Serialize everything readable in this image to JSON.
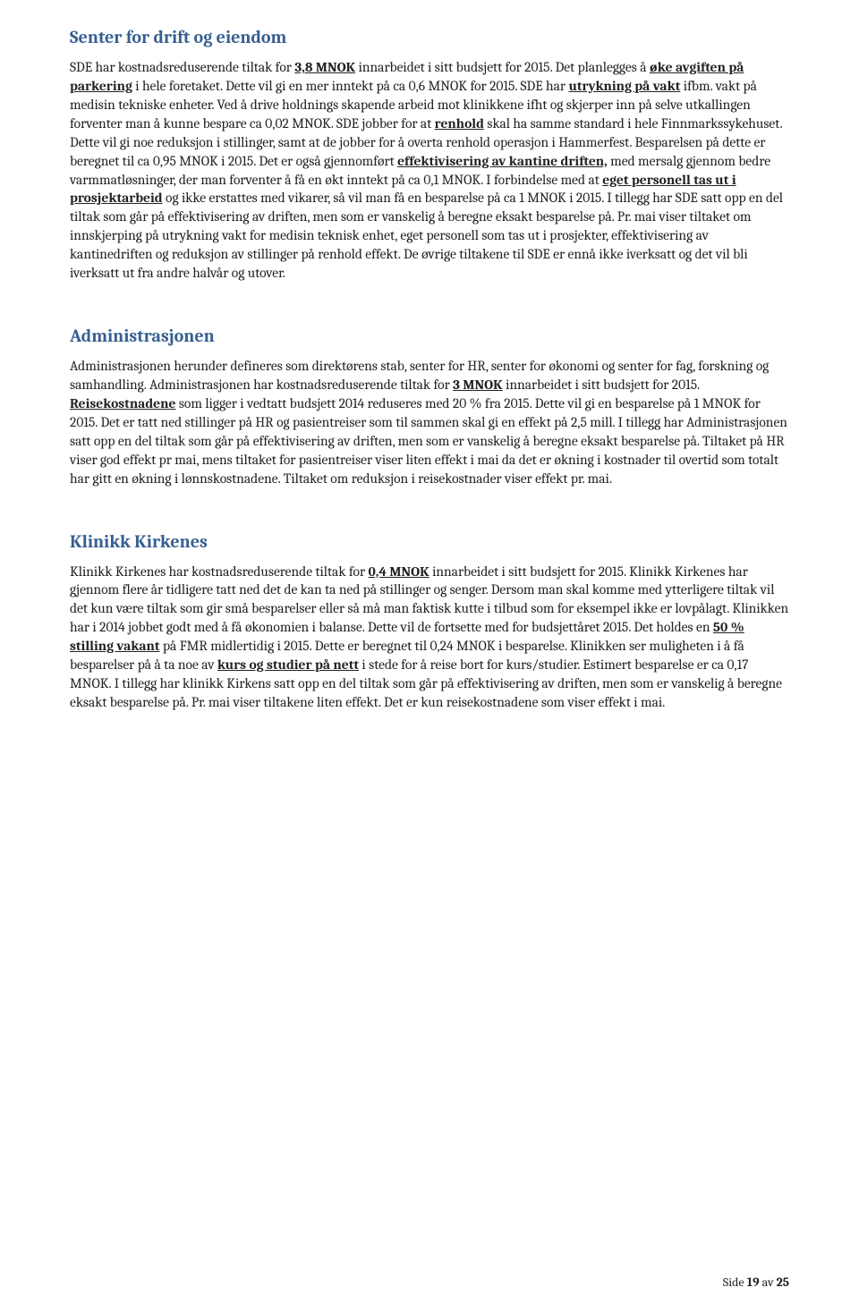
{
  "section1": {
    "heading": "Senter for drift og eiendom",
    "p_pre1": "SDE har kostnadsreduserende tiltak for ",
    "u1": "3,8 MNOK",
    "p_post1": " innarbeidet i sitt budsjett for 2015. Det planlegges å ",
    "u2": "øke avgiften på parkering",
    "p_post2": " i hele foretaket. Dette vil gi en mer inntekt på ca 0,6 MNOK for 2015. SDE har ",
    "u3": "utrykning på vakt",
    "p_post3": " ifbm. vakt på medisin tekniske enheter. Ved å drive holdnings skapende arbeid mot klinikkene ifht og skjerper inn på selve utkallingen forventer man å kunne bespare ca 0,02 MNOK. SDE jobber for at ",
    "u4": "renhold",
    "p_post4": " skal ha samme standard i hele Finnmarkssykehuset. Dette vil gi noe reduksjon i stillinger, samt at de jobber for å overta renhold operasjon i Hammerfest. Besparelsen på dette er beregnet til ca 0,95 MNOK i 2015. Det er også gjennomført ",
    "u5": "effektivisering av kantine driften,",
    "p_post5": " med mersalg gjennom bedre varmmatløsninger, der man forventer å få en økt inntekt på ca 0,1 MNOK. I forbindelse med at ",
    "u6": "eget personell tas ut i prosjektarbeid",
    "p_post6": " og ikke erstattes med vikarer, så vil man få en besparelse på ca 1 MNOK i 2015. I tillegg har SDE satt opp en del tiltak som går på effektivisering av driften, men som er vanskelig å beregne eksakt besparelse på. Pr. mai viser tiltaket om innskjerping på utrykning vakt for medisin teknisk enhet, eget personell som tas ut i prosjekter, effektivisering av kantinedriften og reduksjon av stillinger på renhold effekt. De øvrige tiltakene til SDE er ennå ikke iverksatt og det vil bli iverksatt ut fra andre halvår og utover."
  },
  "section2": {
    "heading": "Administrasjonen",
    "p_pre1": "Administrasjonen herunder defineres som direktørens stab, senter for HR, senter for økonomi og senter for fag, forskning og samhandling. Administrasjonen har kostnadsreduserende tiltak for ",
    "u1": "3 MNOK",
    "p_post1": " innarbeidet i sitt budsjett for 2015. ",
    "u2": "Reisekostnadene",
    "p_post2": " som ligger i vedtatt budsjett 2014 reduseres med 20 % fra 2015. Dette vil gi en besparelse på 1 MNOK for 2015. Det er tatt ned stillinger på HR og pasientreiser som til sammen skal gi en effekt på 2,5 mill. I tillegg har Administrasjonen satt opp en del tiltak som går på effektivisering av driften, men som er vanskelig å beregne eksakt besparelse på. Tiltaket på HR viser god effekt pr mai, mens tiltaket for pasientreiser viser liten effekt i mai da det er økning i kostnader til overtid som totalt har gitt en økning i lønnskostnadene. Tiltaket om reduksjon i reisekostnader viser effekt pr. mai."
  },
  "section3": {
    "heading": "Klinikk Kirkenes",
    "p_pre1": "Klinikk Kirkenes har kostnadsreduserende tiltak for ",
    "u1": "0,4 MNOK",
    "p_post1": " innarbeidet i sitt budsjett for 2015. Klinikk Kirkenes har gjennom flere år tidligere tatt ned det de kan ta ned på stillinger og senger. Dersom man skal komme med ytterligere tiltak vil det kun være tiltak som gir små besparelser eller så må man faktisk kutte i tilbud som for eksempel ikke er lovpålagt. Klinikken har i 2014 jobbet godt med å få økonomien i balanse. Dette vil de fortsette med for budsjettåret 2015. Det holdes en ",
    "u2": "50 % stilling vakant",
    "p_post2": " på FMR midlertidig i 2015. Dette er beregnet til 0,24 MNOK i besparelse. Klinikken ser muligheten i å få besparelser på å ta noe av ",
    "u3": "kurs og studier på nett",
    "p_post3": " i stede for å reise bort for kurs/studier. Estimert besparelse er ca 0,17 MNOK. I tillegg har klinikk Kirkens satt opp en del tiltak som går på effektivisering av driften, men som er vanskelig å beregne eksakt besparelse på. Pr. mai viser tiltakene liten effekt. Det er kun reisekostnadene som viser effekt i mai."
  },
  "footer": {
    "pre": "Side ",
    "page": "19",
    "mid": " av ",
    "total": "25"
  }
}
